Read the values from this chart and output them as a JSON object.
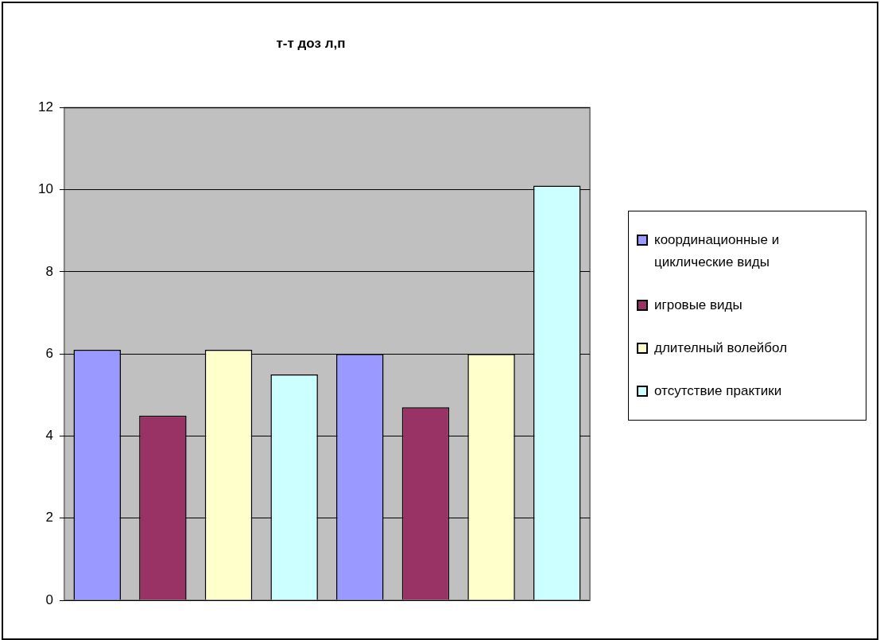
{
  "chart_data": {
    "type": "bar",
    "title": "т-т доз л,п",
    "categories": [
      null,
      null
    ],
    "series": [
      {
        "name": "координационные и циклические виды",
        "color": "#9999ff",
        "values": [
          6.1,
          6.0
        ]
      },
      {
        "name": "игровые виды",
        "color": "#993366",
        "values": [
          4.5,
          4.7
        ]
      },
      {
        "name": "длителный волейбол",
        "color": "#ffffcc",
        "values": [
          6.1,
          6.0
        ]
      },
      {
        "name": "отсутствие практики",
        "color": "#ccffff",
        "values": [
          5.5,
          10.1
        ]
      }
    ],
    "ylim": [
      0,
      12
    ],
    "yticks": [
      0,
      2,
      4,
      6,
      8,
      10,
      12
    ],
    "grid": "y",
    "legend": "right"
  }
}
